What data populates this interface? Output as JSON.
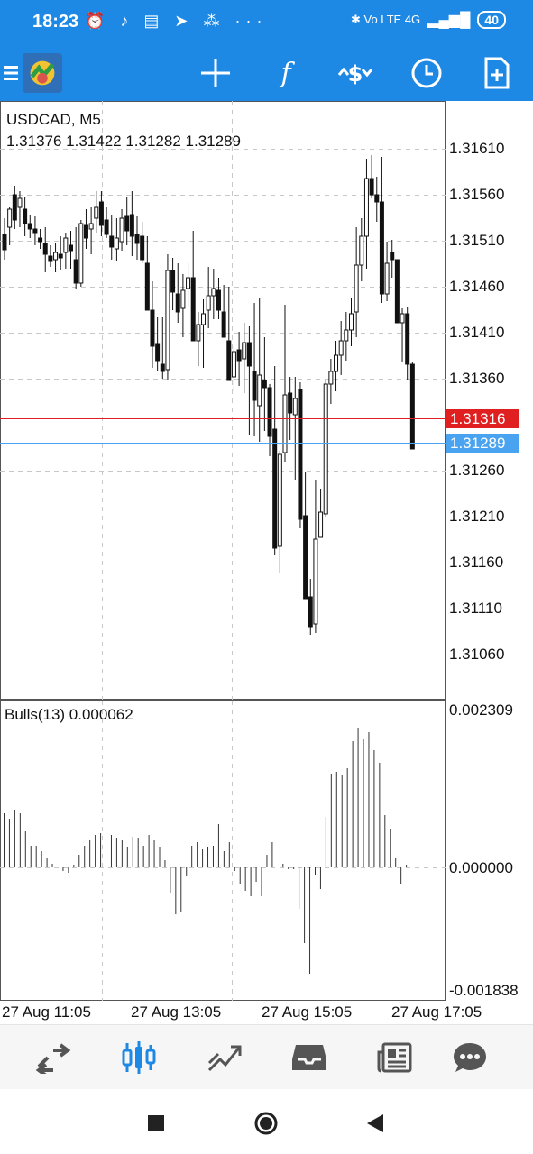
{
  "status_bar": {
    "time": "18:23",
    "left_icons": "⏰ ♪ ▤ ➤ ⁂ ···",
    "right_icons": "✱ Vo LTE 4G",
    "battery": "40"
  },
  "toolbar": {
    "colors": {
      "bar": "#1e88e5",
      "icon": "#ffffff"
    },
    "buttons": [
      "menu-icon",
      "app-logo",
      "crosshair-icon",
      "indicators-icon",
      "trade-icon",
      "timeframe-icon",
      "new-order-icon"
    ]
  },
  "chart": {
    "symbol": "USDCAD, M5",
    "ohlc": "1.31376 1.31422 1.31282 1.31289",
    "price_labels": [
      "1.31610",
      "1.31560",
      "1.31510",
      "1.31460",
      "1.31410",
      "1.31360",
      "1.31260",
      "1.31210",
      "1.31160",
      "1.31110",
      "1.31060"
    ],
    "bid_line": {
      "price": "1.31316",
      "color": "#e02020"
    },
    "current_price": {
      "price": "1.31289",
      "color": "#4aa3f0"
    },
    "time_labels": [
      "27 Aug 11:05",
      "27 Aug 13:05",
      "27 Aug 15:05",
      "27 Aug 17:05"
    ],
    "indicator": {
      "label": "Bulls(13) 0.000062",
      "scale_labels": [
        "0.002309",
        "0.000000",
        "-0.001838"
      ]
    }
  },
  "bottom_nav": {
    "items": [
      "quotes-icon",
      "chart-icon",
      "trade-icon",
      "history-icon",
      "news-icon",
      "messages-icon"
    ],
    "active": "chart-icon",
    "active_color": "#1e88e5",
    "inactive_color": "#555555"
  }
}
